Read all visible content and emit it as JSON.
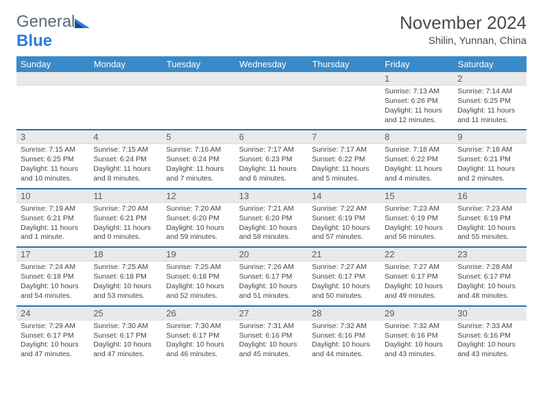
{
  "logo": {
    "text1": "General",
    "text2": "Blue"
  },
  "header": {
    "month_title": "November 2024",
    "location": "Shilin, Yunnan, China"
  },
  "colors": {
    "header_bg": "#3a8ac9",
    "header_text": "#ffffff",
    "numrow_bg": "#e9e9e9",
    "row_divider": "#2a6fa8",
    "logo_blue": "#2a7de1",
    "logo_gray": "#5a6a7a",
    "text": "#444444",
    "title": "#4a4a4a"
  },
  "typography": {
    "month_title_fontsize": 26,
    "location_fontsize": 15,
    "dayhead_fontsize": 13,
    "daynum_fontsize": 13,
    "cell_fontsize": 10.5
  },
  "days_of_week": [
    "Sunday",
    "Monday",
    "Tuesday",
    "Wednesday",
    "Thursday",
    "Friday",
    "Saturday"
  ],
  "weeks": [
    {
      "nums": [
        "",
        "",
        "",
        "",
        "",
        "1",
        "2"
      ],
      "cells": [
        {
          "lines": []
        },
        {
          "lines": []
        },
        {
          "lines": []
        },
        {
          "lines": []
        },
        {
          "lines": []
        },
        {
          "lines": [
            "Sunrise: 7:13 AM",
            "Sunset: 6:26 PM",
            "Daylight: 11 hours",
            "and 12 minutes."
          ]
        },
        {
          "lines": [
            "Sunrise: 7:14 AM",
            "Sunset: 6:25 PM",
            "Daylight: 11 hours",
            "and 11 minutes."
          ]
        }
      ]
    },
    {
      "nums": [
        "3",
        "4",
        "5",
        "6",
        "7",
        "8",
        "9"
      ],
      "cells": [
        {
          "lines": [
            "Sunrise: 7:15 AM",
            "Sunset: 6:25 PM",
            "Daylight: 11 hours",
            "and 10 minutes."
          ]
        },
        {
          "lines": [
            "Sunrise: 7:15 AM",
            "Sunset: 6:24 PM",
            "Daylight: 11 hours",
            "and 8 minutes."
          ]
        },
        {
          "lines": [
            "Sunrise: 7:16 AM",
            "Sunset: 6:24 PM",
            "Daylight: 11 hours",
            "and 7 minutes."
          ]
        },
        {
          "lines": [
            "Sunrise: 7:17 AM",
            "Sunset: 6:23 PM",
            "Daylight: 11 hours",
            "and 6 minutes."
          ]
        },
        {
          "lines": [
            "Sunrise: 7:17 AM",
            "Sunset: 6:22 PM",
            "Daylight: 11 hours",
            "and 5 minutes."
          ]
        },
        {
          "lines": [
            "Sunrise: 7:18 AM",
            "Sunset: 6:22 PM",
            "Daylight: 11 hours",
            "and 4 minutes."
          ]
        },
        {
          "lines": [
            "Sunrise: 7:18 AM",
            "Sunset: 6:21 PM",
            "Daylight: 11 hours",
            "and 2 minutes."
          ]
        }
      ]
    },
    {
      "nums": [
        "10",
        "11",
        "12",
        "13",
        "14",
        "15",
        "16"
      ],
      "cells": [
        {
          "lines": [
            "Sunrise: 7:19 AM",
            "Sunset: 6:21 PM",
            "Daylight: 11 hours",
            "and 1 minute."
          ]
        },
        {
          "lines": [
            "Sunrise: 7:20 AM",
            "Sunset: 6:21 PM",
            "Daylight: 11 hours",
            "and 0 minutes."
          ]
        },
        {
          "lines": [
            "Sunrise: 7:20 AM",
            "Sunset: 6:20 PM",
            "Daylight: 10 hours",
            "and 59 minutes."
          ]
        },
        {
          "lines": [
            "Sunrise: 7:21 AM",
            "Sunset: 6:20 PM",
            "Daylight: 10 hours",
            "and 58 minutes."
          ]
        },
        {
          "lines": [
            "Sunrise: 7:22 AM",
            "Sunset: 6:19 PM",
            "Daylight: 10 hours",
            "and 57 minutes."
          ]
        },
        {
          "lines": [
            "Sunrise: 7:23 AM",
            "Sunset: 6:19 PM",
            "Daylight: 10 hours",
            "and 56 minutes."
          ]
        },
        {
          "lines": [
            "Sunrise: 7:23 AM",
            "Sunset: 6:19 PM",
            "Daylight: 10 hours",
            "and 55 minutes."
          ]
        }
      ]
    },
    {
      "nums": [
        "17",
        "18",
        "19",
        "20",
        "21",
        "22",
        "23"
      ],
      "cells": [
        {
          "lines": [
            "Sunrise: 7:24 AM",
            "Sunset: 6:18 PM",
            "Daylight: 10 hours",
            "and 54 minutes."
          ]
        },
        {
          "lines": [
            "Sunrise: 7:25 AM",
            "Sunset: 6:18 PM",
            "Daylight: 10 hours",
            "and 53 minutes."
          ]
        },
        {
          "lines": [
            "Sunrise: 7:25 AM",
            "Sunset: 6:18 PM",
            "Daylight: 10 hours",
            "and 52 minutes."
          ]
        },
        {
          "lines": [
            "Sunrise: 7:26 AM",
            "Sunset: 6:17 PM",
            "Daylight: 10 hours",
            "and 51 minutes."
          ]
        },
        {
          "lines": [
            "Sunrise: 7:27 AM",
            "Sunset: 6:17 PM",
            "Daylight: 10 hours",
            "and 50 minutes."
          ]
        },
        {
          "lines": [
            "Sunrise: 7:27 AM",
            "Sunset: 6:17 PM",
            "Daylight: 10 hours",
            "and 49 minutes."
          ]
        },
        {
          "lines": [
            "Sunrise: 7:28 AM",
            "Sunset: 6:17 PM",
            "Daylight: 10 hours",
            "and 48 minutes."
          ]
        }
      ]
    },
    {
      "nums": [
        "24",
        "25",
        "26",
        "27",
        "28",
        "29",
        "30"
      ],
      "cells": [
        {
          "lines": [
            "Sunrise: 7:29 AM",
            "Sunset: 6:17 PM",
            "Daylight: 10 hours",
            "and 47 minutes."
          ]
        },
        {
          "lines": [
            "Sunrise: 7:30 AM",
            "Sunset: 6:17 PM",
            "Daylight: 10 hours",
            "and 47 minutes."
          ]
        },
        {
          "lines": [
            "Sunrise: 7:30 AM",
            "Sunset: 6:17 PM",
            "Daylight: 10 hours",
            "and 46 minutes."
          ]
        },
        {
          "lines": [
            "Sunrise: 7:31 AM",
            "Sunset: 6:16 PM",
            "Daylight: 10 hours",
            "and 45 minutes."
          ]
        },
        {
          "lines": [
            "Sunrise: 7:32 AM",
            "Sunset: 6:16 PM",
            "Daylight: 10 hours",
            "and 44 minutes."
          ]
        },
        {
          "lines": [
            "Sunrise: 7:32 AM",
            "Sunset: 6:16 PM",
            "Daylight: 10 hours",
            "and 43 minutes."
          ]
        },
        {
          "lines": [
            "Sunrise: 7:33 AM",
            "Sunset: 6:16 PM",
            "Daylight: 10 hours",
            "and 43 minutes."
          ]
        }
      ]
    }
  ]
}
